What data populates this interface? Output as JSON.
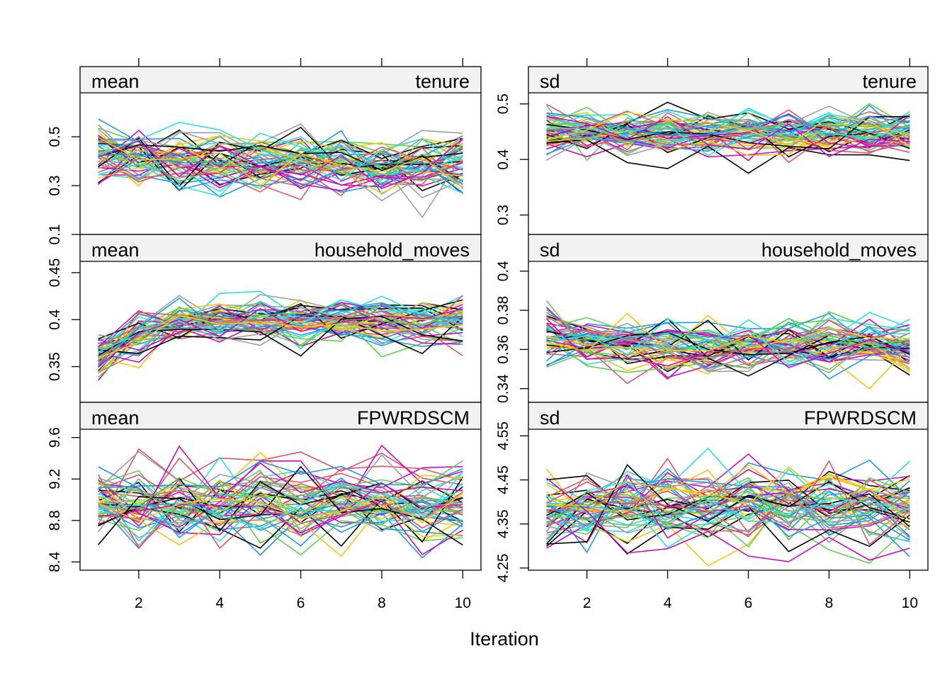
{
  "figure": {
    "xlabel": "Iteration",
    "x_ticks": [
      2,
      4,
      6,
      8,
      10
    ]
  },
  "palette": [
    "#000000",
    "#DF536B",
    "#61D04F",
    "#2297E6",
    "#28E2E5",
    "#CD0BBC",
    "#F5C710",
    "#9E9E9E"
  ],
  "chart_data": [
    {
      "type": "line",
      "stat": "mean",
      "variable": "tenure",
      "x": [
        1,
        2,
        3,
        4,
        5,
        6,
        7,
        8,
        9,
        10
      ],
      "xlim": [
        0.55,
        10.45
      ],
      "ylim": [
        0.1,
        0.68
      ],
      "y_ticks": [
        0.1,
        0.3,
        0.5
      ],
      "n_series": 55,
      "center": 0.39,
      "spread": 0.055,
      "start_center": 0.43,
      "start_spread": 0.07,
      "y_extent": [
        0.11,
        0.64
      ]
    },
    {
      "type": "line",
      "stat": "sd",
      "variable": "tenure",
      "x": [
        1,
        2,
        3,
        4,
        5,
        6,
        7,
        8,
        9,
        10
      ],
      "xlim": [
        0.55,
        10.45
      ],
      "ylim": [
        0.265,
        0.52
      ],
      "y_ticks": [
        0.3,
        0.4,
        0.5
      ],
      "n_series": 55,
      "center": 0.448,
      "spread": 0.018,
      "start_center": 0.448,
      "start_spread": 0.022,
      "y_extent": [
        0.28,
        0.505
      ]
    },
    {
      "type": "line",
      "stat": "mean",
      "variable": "household_moves",
      "x": [
        1,
        2,
        3,
        4,
        5,
        6,
        7,
        8,
        9,
        10
      ],
      "xlim": [
        0.55,
        10.45
      ],
      "ylim": [
        0.312,
        0.462
      ],
      "y_ticks": [
        0.35,
        0.4,
        0.45
      ],
      "n_series": 55,
      "center": 0.398,
      "spread": 0.011,
      "start_center": 0.36,
      "start_spread": 0.013,
      "y_extent": [
        0.322,
        0.453
      ]
    },
    {
      "type": "line",
      "stat": "sd",
      "variable": "household_moves",
      "x": [
        1,
        2,
        3,
        4,
        5,
        6,
        7,
        8,
        9,
        10
      ],
      "xlim": [
        0.55,
        10.45
      ],
      "ylim": [
        0.333,
        0.405
      ],
      "y_ticks": [
        0.34,
        0.36,
        0.38,
        0.4
      ],
      "n_series": 55,
      "center": 0.3615,
      "spread": 0.0055,
      "start_center": 0.369,
      "start_spread": 0.008,
      "y_extent": [
        0.336,
        0.4
      ]
    },
    {
      "type": "line",
      "stat": "mean",
      "variable": "FPWRDSCM",
      "x": [
        1,
        2,
        3,
        4,
        5,
        6,
        7,
        8,
        9,
        10
      ],
      "xlim": [
        0.55,
        10.45
      ],
      "ylim": [
        8.32,
        9.68
      ],
      "y_ticks": [
        8.4,
        8.8,
        9.2,
        9.6
      ],
      "n_series": 55,
      "center": 8.96,
      "spread": 0.16,
      "start_center": 8.96,
      "start_spread": 0.17,
      "y_extent": [
        8.37,
        9.58
      ]
    },
    {
      "type": "line",
      "stat": "sd",
      "variable": "FPWRDSCM",
      "x": [
        1,
        2,
        3,
        4,
        5,
        6,
        7,
        8,
        9,
        10
      ],
      "xlim": [
        0.55,
        10.45
      ],
      "ylim": [
        4.245,
        4.565
      ],
      "y_ticks": [
        4.25,
        4.35,
        4.45,
        4.55
      ],
      "n_series": 55,
      "center": 4.398,
      "spread": 0.038,
      "start_center": 4.37,
      "start_spread": 0.04,
      "y_extent": [
        4.255,
        4.56
      ]
    }
  ]
}
